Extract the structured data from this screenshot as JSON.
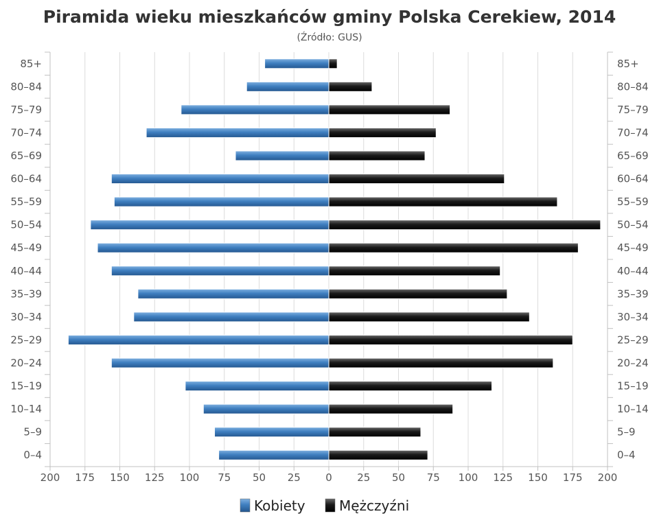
{
  "chart_data": {
    "type": "bar",
    "orientation": "horizontal-pyramid",
    "title": "Piramida wieku mieszkańców gminy Polska Cerekiew, 2014",
    "subtitle": "(Źródło: GUS)",
    "categories": [
      "85+",
      "80–84",
      "75–79",
      "70–74",
      "65–69",
      "60–64",
      "55–59",
      "50–54",
      "45–49",
      "40–44",
      "35–39",
      "30–34",
      "25–29",
      "20–24",
      "15–19",
      "10–14",
      "5–9",
      "0–4"
    ],
    "series": [
      {
        "name": "Kobiety",
        "side": "left",
        "color": "#3f7fc0",
        "values": [
          46,
          59,
          106,
          131,
          67,
          156,
          154,
          171,
          166,
          156,
          137,
          140,
          187,
          156,
          103,
          90,
          82,
          79
        ]
      },
      {
        "name": "Mężczyźni",
        "side": "right",
        "color": "#1a1a1a",
        "values": [
          6,
          31,
          87,
          77,
          69,
          126,
          164,
          195,
          179,
          123,
          128,
          144,
          175,
          161,
          117,
          89,
          66,
          71
        ]
      }
    ],
    "xlim": [
      -200,
      200
    ],
    "x_ticks": [
      "200",
      "175",
      "150",
      "125",
      "100",
      "75",
      "50",
      "25",
      "0",
      "25",
      "50",
      "75",
      "100",
      "125",
      "150",
      "175",
      "200"
    ],
    "grid": true,
    "legend_position": "bottom-center"
  }
}
